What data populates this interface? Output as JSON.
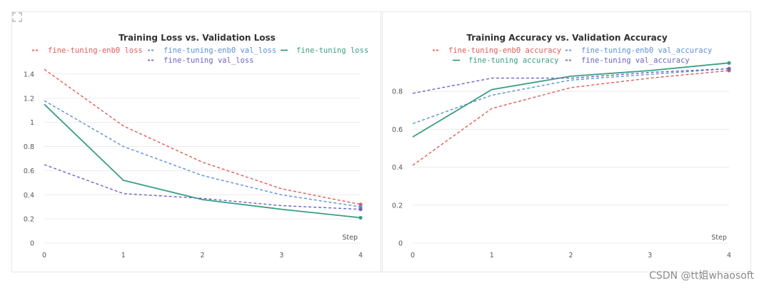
{
  "chart_data": [
    {
      "type": "line",
      "title": "Training Loss vs. Validation Loss",
      "xlabel": "Step",
      "ylabel": "",
      "x": [
        0,
        1,
        2,
        3,
        4
      ],
      "ylim": [
        0,
        1.5
      ],
      "yticks": [
        "0",
        "0.2",
        "0.4",
        "0.6",
        "0.8",
        "1",
        "1.2",
        "1.4"
      ],
      "ytick_values": [
        0,
        0.2,
        0.4,
        0.6,
        0.8,
        1.0,
        1.2,
        1.4
      ],
      "xticks": [
        "0",
        "1",
        "2",
        "3",
        "4"
      ],
      "series": [
        {
          "name": "fine-tuning-enb0 loss",
          "color": "#e05a5a",
          "dashed": true,
          "values": [
            1.44,
            0.97,
            0.67,
            0.45,
            0.32
          ]
        },
        {
          "name": "fine-tuning-enb0 val_loss",
          "color": "#5b8fd9",
          "dashed": true,
          "values": [
            1.18,
            0.8,
            0.56,
            0.4,
            0.3
          ]
        },
        {
          "name": "fine-tuning loss",
          "color": "#3a9e83",
          "dashed": false,
          "values": [
            1.15,
            0.52,
            0.36,
            0.28,
            0.21
          ]
        },
        {
          "name": "fine-tuning val_loss",
          "color": "#6b63c2",
          "dashed": true,
          "values": [
            0.65,
            0.41,
            0.37,
            0.31,
            0.28
          ]
        }
      ]
    },
    {
      "type": "line",
      "title": "Training Accuracy vs. Validation Accuracy",
      "xlabel": "Step",
      "ylabel": "",
      "x": [
        0,
        1,
        2,
        3,
        4
      ],
      "ylim": [
        0,
        0.97
      ],
      "yticks": [
        "0",
        "0.2",
        "0.4",
        "0.6",
        "0.8"
      ],
      "ytick_values": [
        0,
        0.2,
        0.4,
        0.6,
        0.8
      ],
      "xticks": [
        "0",
        "1",
        "2",
        "3",
        "4"
      ],
      "series": [
        {
          "name": "fine-tuning-enb0 accuracy",
          "color": "#e05a5a",
          "dashed": true,
          "values": [
            0.41,
            0.71,
            0.82,
            0.87,
            0.91
          ]
        },
        {
          "name": "fine-tuning-enb0 val_accuracy",
          "color": "#5b8fd9",
          "dashed": true,
          "values": [
            0.63,
            0.78,
            0.86,
            0.89,
            0.92
          ]
        },
        {
          "name": "fine-tuning accuracy",
          "color": "#3a9e83",
          "dashed": false,
          "values": [
            0.56,
            0.81,
            0.88,
            0.91,
            0.95
          ]
        },
        {
          "name": "fine-tuning val_accuracy",
          "color": "#6b63c2",
          "dashed": true,
          "values": [
            0.79,
            0.87,
            0.87,
            0.9,
            0.92
          ]
        }
      ]
    }
  ],
  "watermark": "CSDN @tt姐whaosoft",
  "expand_icon": "expand-icon"
}
